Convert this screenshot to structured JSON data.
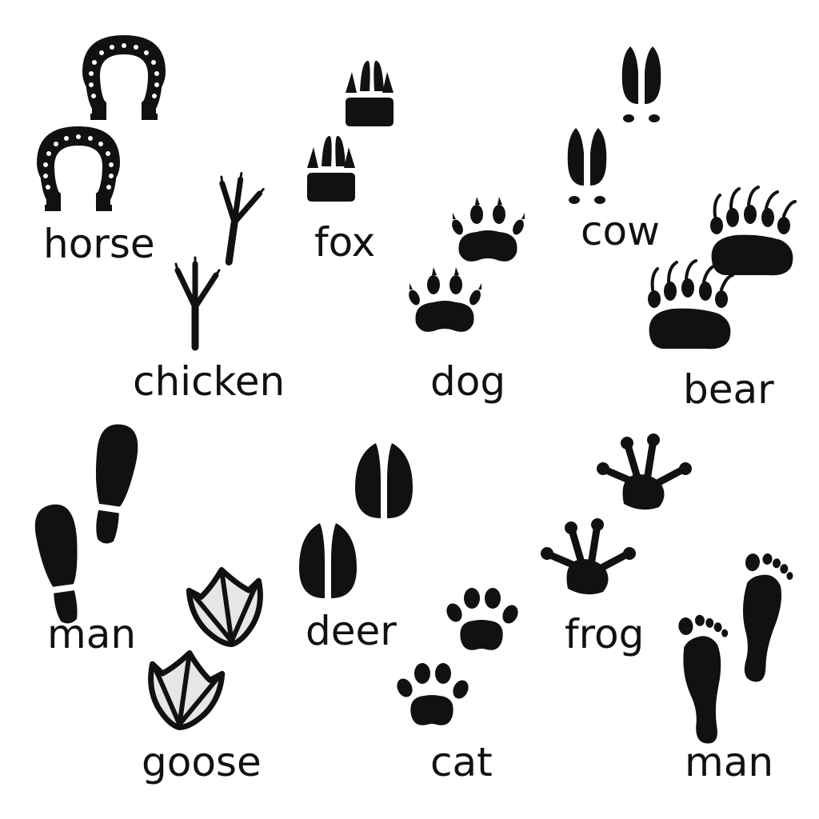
{
  "colors": {
    "background": "#ffffff",
    "ink": "#111111",
    "goose_fill": "#e6e6e6"
  },
  "labels": {
    "horse": "horse",
    "fox": "fox",
    "cow": "cow",
    "chicken": "chicken",
    "dog": "dog",
    "bear": "bear",
    "man_left": "man",
    "deer": "deer",
    "frog": "frog",
    "goose": "goose",
    "cat": "cat",
    "man_right": "man"
  }
}
